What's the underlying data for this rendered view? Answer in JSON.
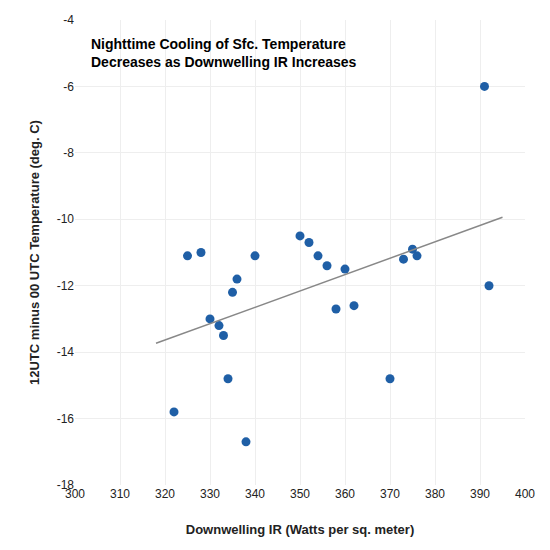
{
  "chart_data": {
    "type": "scatter",
    "title": "Nighttime Cooling of Sfc. Temperature",
    "subtitle": "Decreases as Downwelling IR Increases",
    "x_label": "Downwelling IR (Watts per sq. meter)",
    "y_label": "12UTC minus 00 UTC Temperature (deg. C)",
    "xlim": [
      300,
      400
    ],
    "ylim": [
      -18,
      -4
    ],
    "xticks": [
      300,
      310,
      320,
      330,
      340,
      350,
      360,
      370,
      380,
      390,
      400
    ],
    "yticks": [
      -18,
      -16,
      -14,
      -12,
      -10,
      -8,
      -6,
      -4
    ],
    "grid": true,
    "series": [
      {
        "type": "scatter",
        "marker": "circle",
        "color": "#1F5FA6",
        "x": [
          322,
          325,
          328,
          330,
          332,
          333,
          334,
          335,
          336,
          338,
          340,
          350,
          352,
          354,
          356,
          358,
          360,
          362,
          370,
          373,
          375,
          376,
          391,
          392
        ],
        "values": [
          -15.8,
          -11.1,
          -11.0,
          -13.0,
          -13.2,
          -13.5,
          -14.8,
          -12.2,
          -11.8,
          -16.7,
          -11.1,
          -10.5,
          -10.7,
          -11.1,
          -11.4,
          -12.7,
          -11.5,
          -12.6,
          -14.8,
          -11.2,
          -10.9,
          -11.1,
          -6.0,
          -12.0
        ]
      },
      {
        "type": "line",
        "line_style": "solid",
        "color": "#888888",
        "x": [
          318,
          395
        ],
        "values": [
          -13.7345,
          -9.9402
        ]
      }
    ]
  }
}
